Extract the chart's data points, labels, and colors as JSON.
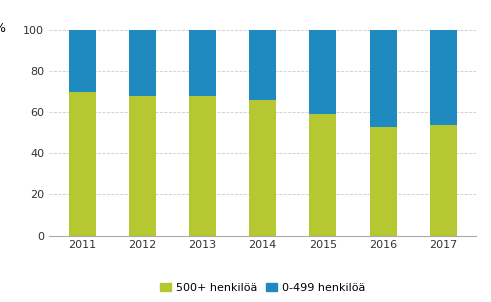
{
  "years": [
    "2011",
    "2012",
    "2013",
    "2014",
    "2015",
    "2016",
    "2017"
  ],
  "large_pct": [
    70,
    68,
    68,
    66,
    59,
    53,
    54
  ],
  "small_pct": [
    30,
    32,
    32,
    34,
    41,
    47,
    46
  ],
  "color_large": "#b5c832",
  "color_small": "#1f8abf",
  "ylabel": "%",
  "ylim": [
    0,
    100
  ],
  "yticks": [
    0,
    20,
    40,
    60,
    80,
    100
  ],
  "legend_large": "500+ henkilöä",
  "legend_small": "0-499 henkilöä",
  "bar_width": 0.45,
  "background_color": "#ffffff"
}
